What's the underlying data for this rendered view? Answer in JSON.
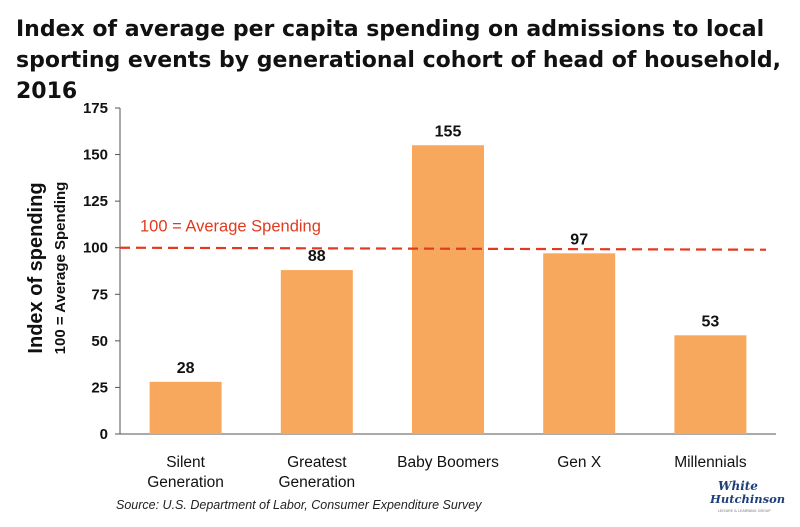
{
  "chart_data": {
    "type": "bar",
    "title": "Index of average per capita spending on admissions to local sporting events by generational cohort of head of household, 2016",
    "ylabel": "Index of spending",
    "ylabel_sub": "100 = Average Spending",
    "categories": [
      "Silent Generation",
      "Greatest Generation",
      "Baby Boomers",
      "Gen X",
      "Millennials"
    ],
    "values": [
      28,
      88,
      155,
      97,
      53
    ],
    "data_labels": [
      "28",
      "88",
      "155",
      "97",
      "53"
    ],
    "ylim": [
      0,
      175
    ],
    "yticks": [
      0,
      25,
      50,
      75,
      100,
      125,
      150,
      175
    ],
    "grid": false,
    "bar_color": "#f7a85c",
    "reference_line": {
      "value": 100,
      "label": "100 = Average Spending",
      "color": "#e23a1f"
    },
    "source": "Source: U.S. Department of Labor, Consumer Expenditure Survey"
  },
  "logo": {
    "line1": "White",
    "line2": "Hutchinson",
    "tagline": "LEISURE & LEARNING GROUP"
  }
}
